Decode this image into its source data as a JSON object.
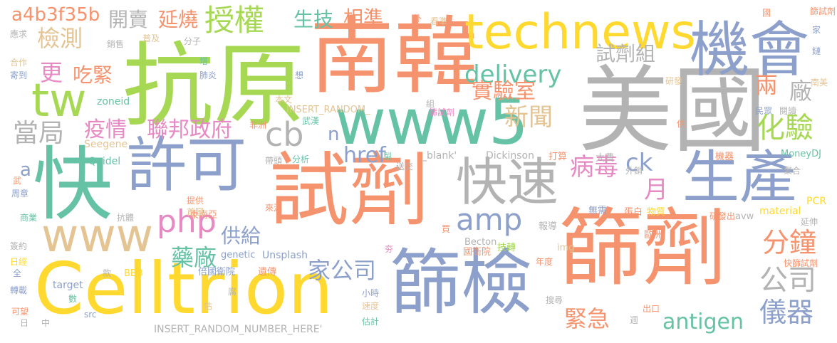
{
  "palette": {
    "orange": "#f5936e",
    "green": "#66c2a5",
    "blue": "#8da0cb",
    "pink": "#e78ac3",
    "lime": "#a6d854",
    "yellow": "#ffd92f",
    "tan": "#e5c494",
    "gray": "#b3b3b3"
  },
  "words": [
    {
      "text": "抗原",
      "color": "#a6d854"
    },
    {
      "text": "南韓",
      "color": "#f5936e"
    },
    {
      "text": "美國",
      "color": "#b3b3b3"
    },
    {
      "text": "篩劑",
      "color": "#f5936e"
    },
    {
      "text": "試劑",
      "color": "#f5936e"
    },
    {
      "text": "快",
      "color": "#66c2a5"
    },
    {
      "text": "Celltrion",
      "color": "#ffd92f"
    },
    {
      "text": "篩檢",
      "color": "#8da0cb"
    },
    {
      "text": "www5",
      "color": "#66c2a5"
    },
    {
      "text": "technews",
      "color": "#ffd92f"
    },
    {
      "text": "機會",
      "color": "#8da0cb"
    },
    {
      "text": "許可",
      "color": "#8da0cb"
    },
    {
      "text": "快速",
      "color": "#b3b3b3"
    },
    {
      "text": "生產",
      "color": "#8da0cb"
    },
    {
      "text": "www",
      "color": "#e5c494"
    },
    {
      "text": "tw",
      "color": "#a6d854"
    },
    {
      "text": "授權",
      "color": "#a6d854"
    },
    {
      "text": "delivery",
      "color": "#66c2a5"
    },
    {
      "text": "a4b3f35b",
      "color": "#f5936e"
    },
    {
      "text": "檢測",
      "color": "#e5c494"
    },
    {
      "text": "更",
      "color": "#e78ac3"
    },
    {
      "text": "吃緊",
      "color": "#f5936e"
    },
    {
      "text": "實驗室",
      "color": "#f5936e"
    },
    {
      "text": "新聞",
      "color": "#e5c494"
    },
    {
      "text": "當局",
      "color": "#b3b3b3"
    },
    {
      "text": "疫情",
      "color": "#e78ac3"
    },
    {
      "text": "聯邦政府",
      "color": "#e78ac3"
    },
    {
      "text": "cb",
      "color": "#b3b3b3"
    },
    {
      "text": "php",
      "color": "#e78ac3"
    },
    {
      "text": "amp",
      "color": "#8da0cb"
    },
    {
      "text": "病毒",
      "color": "#e78ac3"
    },
    {
      "text": "月",
      "color": "#e78ac3"
    },
    {
      "text": "分鐘",
      "color": "#f5936e"
    },
    {
      "text": "公司",
      "color": "#b3b3b3"
    },
    {
      "text": "儀器",
      "color": "#8da0cb"
    },
    {
      "text": "藥廠",
      "color": "#66c2a5"
    },
    {
      "text": "家公司",
      "color": "#8da0cb"
    },
    {
      "text": "antigen",
      "color": "#66c2a5"
    },
    {
      "text": "緊急",
      "color": "#f5936e"
    },
    {
      "text": "供給",
      "color": "#8da0cb"
    },
    {
      "text": "兩",
      "color": "#f5936e"
    },
    {
      "text": "廠",
      "color": "#b3b3b3"
    },
    {
      "text": "化驗",
      "color": "#a6d854"
    },
    {
      "text": "試劑組",
      "color": "#b3b3b3"
    },
    {
      "text": "生技",
      "color": "#66c2a5"
    },
    {
      "text": "相準",
      "color": "#f5936e"
    },
    {
      "text": "開賣",
      "color": "#b3b3b3"
    },
    {
      "text": "延燒",
      "color": "#f5936e"
    },
    {
      "text": "href",
      "color": "#8da0cb"
    },
    {
      "text": "ck",
      "color": "#8da0cb"
    },
    {
      "text": "n",
      "color": "#8da0cb"
    },
    {
      "text": "a",
      "color": "#8da0cb"
    },
    {
      "text": "INSERT_RANDOM_",
      "color": "#e5c494"
    },
    {
      "text": "INSERT_RANDOM_NUMBER_HERE'",
      "color": "#b3b3b3"
    },
    {
      "text": "Dickinson",
      "color": "#b3b3b3"
    },
    {
      "text": "_blank'",
      "color": "#b3b3b3"
    },
    {
      "text": "Seegene",
      "color": "#e5c494"
    },
    {
      "text": "Quidel",
      "color": "#66c2a5"
    },
    {
      "text": "zoneid",
      "color": "#66c2a5"
    },
    {
      "text": "genetic",
      "color": "#8da0cb"
    },
    {
      "text": "Unsplash",
      "color": "#8da0cb"
    },
    {
      "text": "Becton",
      "color": "#b3b3b3"
    },
    {
      "text": "MoneyDJ",
      "color": "#66c2a5"
    },
    {
      "text": "material",
      "color": "#ffd92f"
    },
    {
      "text": "PCR",
      "color": "#ffd92f"
    },
    {
      "text": "avw",
      "color": "#b3b3b3"
    },
    {
      "text": "img",
      "color": "#e5c494"
    },
    {
      "text": "target",
      "color": "#8da0cb"
    },
    {
      "text": "BBB",
      "color": "#ffd92f"
    },
    {
      "text": "src",
      "color": "#8da0cb"
    },
    {
      "text": "篩試劑",
      "color": "#f5936e"
    },
    {
      "text": "快篩試劑",
      "color": "#f5936e"
    },
    {
      "text": "研發出",
      "color": "#f5936e"
    },
    {
      "text": "歐洲",
      "color": "#f5936e"
    },
    {
      "text": "國衛院",
      "color": "#f5936e"
    },
    {
      "text": "倍國衛院",
      "color": "#8da0cb"
    },
    {
      "text": "東南亞",
      "color": "#f5936e"
    },
    {
      "text": "遺傳",
      "color": "#f5936e"
    },
    {
      "text": "技轉",
      "color": "#a6d854"
    },
    {
      "text": "報導",
      "color": "#b3b3b3"
    },
    {
      "text": "年度",
      "color": "#f5936e"
    },
    {
      "text": "蛋白",
      "color": "#f5936e"
    },
    {
      "text": "物質",
      "color": "#ffd92f"
    },
    {
      "text": "無需",
      "color": "#8da0cb"
    },
    {
      "text": "外銷",
      "color": "#b3b3b3"
    },
    {
      "text": "機器",
      "color": "#f5936e"
    },
    {
      "text": "大費",
      "color": "#b3b3b3"
    },
    {
      "text": "打算",
      "color": "#f5936e"
    },
    {
      "text": "研發",
      "color": "#e5c494"
    },
    {
      "text": "南美",
      "color": "#e5c494"
    },
    {
      "text": "鏈",
      "color": "#8da0cb"
    },
    {
      "text": "家",
      "color": "#8da0cb"
    },
    {
      "text": "國",
      "color": "#f5936e"
    },
    {
      "text": "民眾",
      "color": "#8da0cb"
    },
    {
      "text": "閱讀",
      "color": "#b3b3b3"
    },
    {
      "text": "供",
      "color": "#f5936e"
    },
    {
      "text": "聚合",
      "color": "#b3b3b3"
    },
    {
      "text": "延伸",
      "color": "#b3b3b3"
    },
    {
      "text": "看準",
      "color": "#e5c494"
    },
    {
      "text": "外",
      "color": "#f5936e"
    },
    {
      "text": "組",
      "color": "#b3b3b3"
    },
    {
      "text": "篩試劑",
      "color": "#e78ac3"
    },
    {
      "text": "想",
      "color": "#8da0cb"
    },
    {
      "text": "增",
      "color": "#66c2a5"
    },
    {
      "text": "肺炎",
      "color": "#8da0cb"
    },
    {
      "text": "分子",
      "color": "#b3b3b3"
    },
    {
      "text": "普及",
      "color": "#e5c494"
    },
    {
      "text": "銷售",
      "color": "#b3b3b3"
    },
    {
      "text": "應求",
      "color": "#b3b3b3"
    },
    {
      "text": "合作",
      "color": "#e5c494"
    },
    {
      "text": "寄到",
      "color": "#8da0cb"
    },
    {
      "text": "本文",
      "color": "#e5c494"
    },
    {
      "text": "武漢",
      "color": "#66c2a5"
    },
    {
      "text": "非洲",
      "color": "#f5936e"
    },
    {
      "text": "製",
      "color": "#66c2a5"
    },
    {
      "text": "送交",
      "color": "#b3b3b3"
    },
    {
      "text": "分析",
      "color": "#66c2a5"
    },
    {
      "text": "帶頭",
      "color": "#b3b3b3"
    },
    {
      "text": "提供",
      "color": "#f5936e"
    },
    {
      "text": "首圖",
      "color": "#e5c494"
    },
    {
      "text": "來源",
      "color": "#f5936e"
    },
    {
      "text": "抗體",
      "color": "#b3b3b3"
    },
    {
      "text": "商業",
      "color": "#66c2a5"
    },
    {
      "text": "周章",
      "color": "#8da0cb"
    },
    {
      "text": "武",
      "color": "#f5936e"
    },
    {
      "text": "簽約",
      "color": "#b3b3b3"
    },
    {
      "text": "日經",
      "color": "#ffd92f"
    },
    {
      "text": "全",
      "color": "#8da0cb"
    },
    {
      "text": "款",
      "color": "#b3b3b3"
    },
    {
      "text": "轉載",
      "color": "#8da0cb"
    },
    {
      "text": "數",
      "color": "#66c2a5"
    },
    {
      "text": "可望",
      "color": "#f5936e"
    },
    {
      "text": "日",
      "color": "#b3b3b3"
    },
    {
      "text": "中",
      "color": "#b3b3b3"
    },
    {
      "text": "腐",
      "color": "#b3b3b3"
    },
    {
      "text": "估",
      "color": "#e5c494"
    },
    {
      "text": "夯",
      "color": "#e78ac3"
    },
    {
      "text": "買",
      "color": "#f5936e"
    },
    {
      "text": "小時",
      "color": "#8da0cb"
    },
    {
      "text": "速度",
      "color": "#e5c494"
    },
    {
      "text": "估計",
      "color": "#66c2a5"
    },
    {
      "text": "搜尋",
      "color": "#b3b3b3"
    },
    {
      "text": "週",
      "color": "#b3b3b3"
    },
    {
      "text": "出口",
      "color": "#f5936e"
    }
  ]
}
